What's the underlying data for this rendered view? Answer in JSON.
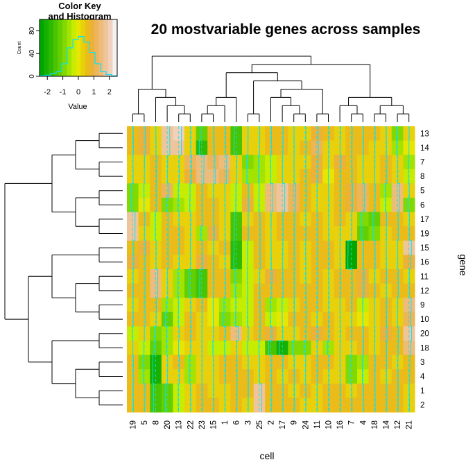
{
  "chart_data": {
    "type": "heatmap",
    "title": "20 mostvariable genes across samples",
    "xlabel": "cell",
    "ylabel": "gene",
    "columns": [
      "19",
      "5",
      "8",
      "20",
      "13",
      "22",
      "23",
      "15",
      "1",
      "6",
      "3",
      "25",
      "2",
      "17",
      "9",
      "24",
      "11",
      "10",
      "16",
      "7",
      "4",
      "18",
      "14",
      "12",
      "21"
    ],
    "rows": [
      "13",
      "14",
      "7",
      "8",
      "5",
      "6",
      "17",
      "19",
      "15",
      "16",
      "11",
      "12",
      "9",
      "10",
      "20",
      "18",
      "3",
      "4",
      "1",
      "2"
    ],
    "value_range": [
      -2.5,
      2.5
    ],
    "palette": [
      "#00a600",
      "#16b000",
      "#2eba00",
      "#48c400",
      "#63cf00",
      "#82d900",
      "#a3e300",
      "#c6ec00",
      "#e6e600",
      "#e8d00b",
      "#eabb19",
      "#ebb139",
      "#ecb55a",
      "#edbc7b",
      "#eec59b",
      "#f0d1bc",
      "#f2f2f2"
    ],
    "trace_color": "#00e5ff",
    "values": [
      [
        0.5,
        0.8,
        0.2,
        1.8,
        2.0,
        0.4,
        -1.2,
        0.6,
        0.7,
        -1.5,
        0.3,
        0.4,
        0.5,
        0.6,
        0.2,
        0.4,
        1.0,
        0.5,
        0.4,
        0.6,
        0.5,
        0.6,
        0.3,
        -0.8,
        0.2
      ],
      [
        0.6,
        1.0,
        0.3,
        1.9,
        1.9,
        0.4,
        -1.8,
        0.7,
        0.6,
        -1.6,
        0.2,
        0.3,
        0.6,
        0.5,
        0.3,
        0.6,
        1.1,
        0.4,
        0.2,
        0.5,
        0.5,
        0.4,
        0.4,
        -0.6,
        0.0
      ],
      [
        0.3,
        0.3,
        0.6,
        0.4,
        0.3,
        1.1,
        1.6,
        1.2,
        1.4,
        0.4,
        -0.8,
        -0.6,
        -0.3,
        0.3,
        0.2,
        0.4,
        0.9,
        0.2,
        0.8,
        0.5,
        0.3,
        0.4,
        0.7,
        0.3,
        -0.5
      ],
      [
        0.4,
        0.2,
        0.5,
        0.3,
        0.4,
        1.0,
        1.5,
        1.4,
        1.3,
        0.3,
        -0.7,
        -0.5,
        -0.2,
        0.2,
        0.3,
        0.5,
        0.8,
        0.1,
        0.7,
        0.6,
        0.2,
        0.3,
        0.6,
        0.4,
        -0.4
      ],
      [
        -1.0,
        -0.2,
        0.6,
        1.3,
        -0.3,
        -0.2,
        0.6,
        0.4,
        0.2,
        -0.3,
        0.7,
        -0.2,
        1.5,
        1.8,
        1.2,
        0.6,
        0.3,
        0.2,
        0.6,
        0.9,
        1.3,
        0.6,
        -0.5,
        1.5,
        0.3
      ],
      [
        -0.9,
        -0.1,
        0.7,
        -0.9,
        -0.5,
        -0.3,
        0.5,
        0.6,
        0.3,
        -0.4,
        0.8,
        -0.3,
        1.4,
        1.7,
        1.1,
        0.5,
        0.2,
        0.4,
        0.5,
        0.8,
        1.2,
        0.5,
        -0.4,
        1.4,
        -0.8
      ],
      [
        1.8,
        0.5,
        -0.3,
        0.7,
        0.3,
        0.4,
        0.6,
        0.5,
        0.2,
        -1.4,
        0.4,
        0.6,
        0.3,
        0.5,
        0.6,
        0.4,
        0.7,
        0.2,
        0.5,
        0.4,
        -1.0,
        -1.1,
        0.5,
        0.6,
        0.4
      ],
      [
        1.7,
        0.4,
        -0.2,
        0.6,
        0.5,
        0.3,
        -0.6,
        0.8,
        0.3,
        -1.5,
        0.5,
        0.7,
        0.2,
        0.6,
        0.5,
        0.5,
        0.6,
        0.3,
        0.4,
        0.3,
        -1.1,
        -1.0,
        0.4,
        0.7,
        0.5
      ],
      [
        0.7,
        0.8,
        0.4,
        0.6,
        0.5,
        0.2,
        0.7,
        0.4,
        0.5,
        -1.7,
        -0.3,
        0.6,
        0.3,
        0.4,
        0.6,
        0.3,
        0.7,
        0.5,
        0.2,
        -2.4,
        0.6,
        0.5,
        0.3,
        0.2,
        1.8
      ],
      [
        0.8,
        0.6,
        0.3,
        0.7,
        0.4,
        0.3,
        0.8,
        0.5,
        0.4,
        -1.8,
        -0.2,
        0.7,
        0.4,
        0.3,
        0.7,
        0.4,
        0.6,
        0.6,
        0.3,
        -2.5,
        0.5,
        0.6,
        0.4,
        0.3,
        1.0
      ],
      [
        0.4,
        0.7,
        1.5,
        0.3,
        -0.5,
        -1.2,
        -1.4,
        0.6,
        0.5,
        -0.8,
        -0.3,
        0.4,
        0.8,
        0.5,
        0.6,
        0.4,
        0.7,
        0.3,
        0.5,
        0.6,
        0.9,
        0.4,
        0.5,
        0.6,
        0.4
      ],
      [
        0.5,
        0.6,
        1.4,
        0.4,
        -0.6,
        -1.1,
        -1.5,
        0.5,
        0.6,
        -0.7,
        -0.2,
        0.5,
        0.7,
        0.6,
        0.5,
        0.5,
        0.6,
        0.4,
        0.6,
        0.7,
        0.8,
        0.5,
        0.4,
        0.7,
        0.5
      ],
      [
        0.4,
        0.6,
        0.5,
        -0.6,
        -0.2,
        0.4,
        0.5,
        -0.1,
        -0.6,
        -0.4,
        -0.3,
        0.6,
        -0.5,
        -0.2,
        0.4,
        0.7,
        0.5,
        0.4,
        0.2,
        0.5,
        -0.2,
        0.3,
        0.6,
        0.3,
        1.6
      ],
      [
        0.5,
        0.7,
        0.4,
        -1.3,
        -0.3,
        0.5,
        0.4,
        0.1,
        -0.8,
        -0.5,
        -0.4,
        0.7,
        -0.4,
        -0.1,
        0.5,
        0.6,
        0.4,
        0.5,
        0.3,
        0.4,
        -0.1,
        0.2,
        0.5,
        0.2,
        1.2
      ],
      [
        -0.3,
        0.2,
        -0.8,
        -0.5,
        0.3,
        0.6,
        0.2,
        0.4,
        0.7,
        1.5,
        0.4,
        0.6,
        0.8,
        0.4,
        0.3,
        0.5,
        0.9,
        0.6,
        0.4,
        0.5,
        0.6,
        0.4,
        0.8,
        0.7,
        1.9
      ],
      [
        0.2,
        -0.2,
        -1.2,
        -0.6,
        -0.1,
        0.4,
        0.3,
        -0.3,
        -0.2,
        0.4,
        -0.2,
        -0.3,
        -1.6,
        -2.2,
        -1.0,
        -0.9,
        0.3,
        -0.6,
        0.2,
        0.4,
        0.6,
        0.3,
        0.5,
        0.6,
        1.4
      ],
      [
        0.6,
        -0.8,
        -2.0,
        0.4,
        0.5,
        -0.6,
        0.3,
        0.4,
        0.6,
        0.5,
        0.4,
        0.2,
        0.7,
        0.5,
        0.4,
        0.3,
        0.6,
        0.5,
        0.2,
        -0.9,
        -0.5,
        0.6,
        0.5,
        0.4,
        0.7
      ],
      [
        0.7,
        -0.7,
        -2.1,
        0.3,
        0.4,
        -0.5,
        0.2,
        0.3,
        0.5,
        0.6,
        0.5,
        0.3,
        0.6,
        0.4,
        0.5,
        0.2,
        0.5,
        0.4,
        0.3,
        -1.0,
        -0.4,
        0.5,
        0.4,
        0.5,
        0.6
      ],
      [
        0.5,
        0.6,
        -1.5,
        -1.2,
        -0.4,
        0.3,
        0.5,
        0.4,
        0.2,
        0.6,
        0.5,
        1.8,
        0.7,
        0.6,
        0.4,
        0.5,
        0.3,
        0.6,
        0.5,
        0.4,
        0.6,
        0.5,
        0.7,
        0.6,
        0.3
      ],
      [
        0.6,
        0.5,
        -1.6,
        -1.3,
        -0.3,
        0.4,
        0.6,
        0.5,
        0.3,
        0.5,
        0.4,
        1.7,
        0.6,
        0.5,
        0.5,
        0.4,
        0.4,
        0.5,
        0.6,
        0.5,
        0.7,
        0.6,
        0.6,
        0.5,
        0.4
      ]
    ],
    "color_key": {
      "title_line1": "Color Key",
      "title_line2": "and Histogram",
      "xlabel": "Value",
      "ylabel": "Count",
      "x_ticks": [
        "-2",
        "-1",
        "0",
        "1",
        "2"
      ],
      "y_ticks": [
        "0",
        "40",
        "80"
      ],
      "histogram": [
        1,
        2,
        5,
        8,
        22,
        50,
        65,
        70,
        60,
        42,
        22,
        8,
        3,
        1
      ]
    },
    "row_tree": "((((13,14),(7,8)),((5,6),(17,19))),(((15,16),((11,12),(9,10))),((20,18),((3,4),(1,2)))))",
    "col_tree": "(((19,5),(8,(20,(13,22)))),(((((23,15),1),6),((3,25),((2,(17,(9,24))),(11,10)))),((16,(7,4)),((18,14),(12,21)))))"
  }
}
